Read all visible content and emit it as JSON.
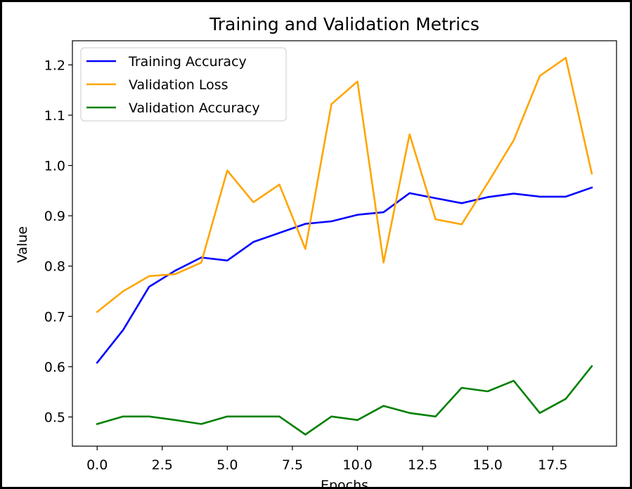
{
  "chart_data": {
    "type": "line",
    "title": "Training and Validation Metrics",
    "xlabel": "Epochs",
    "ylabel": "Value",
    "xlim": [
      -0.95,
      19.95
    ],
    "ylim": [
      0.442,
      1.248
    ],
    "x_ticks": [
      0.0,
      2.5,
      5.0,
      7.5,
      10.0,
      12.5,
      15.0,
      17.5
    ],
    "x_tick_labels": [
      "0.0",
      "2.5",
      "5.0",
      "7.5",
      "10.0",
      "12.5",
      "15.0",
      "17.5"
    ],
    "y_ticks": [
      0.5,
      0.6,
      0.7,
      0.8,
      0.9,
      1.0,
      1.1,
      1.2
    ],
    "y_tick_labels": [
      "0.5",
      "0.6",
      "0.7",
      "0.8",
      "0.9",
      "1.0",
      "1.1",
      "1.2"
    ],
    "grid": false,
    "legend_position": "upper-left",
    "x": [
      0,
      1,
      2,
      3,
      4,
      5,
      6,
      7,
      8,
      9,
      10,
      11,
      12,
      13,
      14,
      15,
      16,
      17,
      18,
      19
    ],
    "series": [
      {
        "name": "Training Accuracy",
        "color": "#0000ff",
        "values": [
          0.608,
          0.673,
          0.759,
          0.791,
          0.817,
          0.811,
          0.848,
          0.866,
          0.884,
          0.889,
          0.902,
          0.907,
          0.945,
          0.935,
          0.925,
          0.937,
          0.944,
          0.938,
          0.938,
          0.956
        ]
      },
      {
        "name": "Validation Loss",
        "color": "#ffa500",
        "values": [
          0.709,
          0.75,
          0.78,
          0.784,
          0.807,
          0.99,
          0.927,
          0.962,
          0.834,
          1.122,
          1.167,
          0.807,
          1.062,
          0.893,
          0.883,
          0.965,
          1.05,
          1.178,
          1.214,
          0.984
        ]
      },
      {
        "name": "Validation Accuracy",
        "color": "#008000",
        "values": [
          0.486,
          0.501,
          0.501,
          0.494,
          0.486,
          0.501,
          0.501,
          0.501,
          0.465,
          0.501,
          0.494,
          0.522,
          0.508,
          0.501,
          0.558,
          0.551,
          0.572,
          0.508,
          0.536,
          0.601
        ]
      }
    ]
  }
}
